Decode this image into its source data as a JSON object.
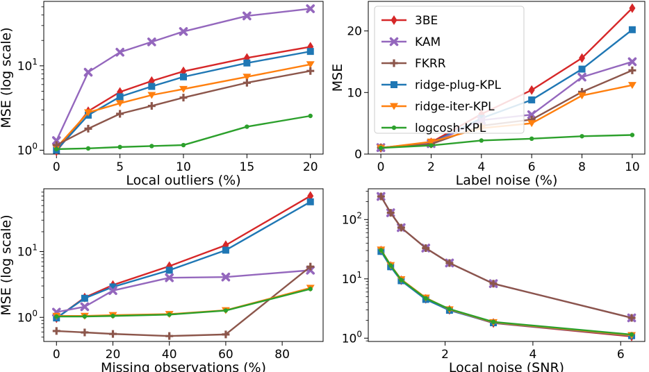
{
  "figure": {
    "legend": {
      "placement": "upper-left of top-right panel",
      "entries": [
        "3BE",
        "KAM",
        "FKRR",
        "ridge-plug-KPL",
        "ridge-iter-KPL",
        "logcosh-KPL"
      ]
    },
    "series_styles": {
      "3BE": {
        "color": "#d62728",
        "marker": "diamond"
      },
      "KAM": {
        "color": "#9467bd",
        "marker": "x"
      },
      "FKRR": {
        "color": "#8c564b",
        "marker": "plus"
      },
      "ridge-plug-KPL": {
        "color": "#1f77b4",
        "marker": "square"
      },
      "ridge-iter-KPL": {
        "color": "#ff7f0e",
        "marker": "triangle-down"
      },
      "logcosh-KPL": {
        "color": "#2ca02c",
        "marker": "dot"
      }
    }
  },
  "chart_data": [
    {
      "type": "line",
      "id": "local-outliers",
      "title": "",
      "xlabel": "Local outliers (%)",
      "ylabel": "MSE (log scale)",
      "yscale": "log",
      "xlim": [
        -1,
        21
      ],
      "ylim": [
        0.9,
        58
      ],
      "xticks": [
        0,
        5,
        10,
        15,
        20
      ],
      "yticks": [
        {
          "value": 1,
          "base": "10",
          "exp": "0"
        },
        {
          "value": 10,
          "base": "10",
          "exp": "1"
        }
      ],
      "x": [
        0,
        2.5,
        5,
        7.5,
        10,
        15,
        20
      ],
      "series": [
        {
          "name": "KAM",
          "values": [
            1.3,
            8.4,
            14.5,
            19.2,
            25.5,
            39.0,
            47.5
          ]
        },
        {
          "name": "3BE",
          "values": [
            0.97,
            2.9,
            4.9,
            6.6,
            8.6,
            12.4,
            16.8
          ]
        },
        {
          "name": "ridge-plug-KPL",
          "values": [
            1.0,
            2.6,
            4.3,
            5.7,
            7.4,
            10.8,
            14.8
          ]
        },
        {
          "name": "ridge-iter-KPL",
          "values": [
            1.07,
            2.8,
            3.6,
            4.5,
            5.3,
            7.4,
            10.4
          ]
        },
        {
          "name": "FKRR",
          "values": [
            1.15,
            1.8,
            2.7,
            3.35,
            4.2,
            6.3,
            8.7
          ]
        },
        {
          "name": "logcosh-KPL",
          "values": [
            1.03,
            1.05,
            1.09,
            1.12,
            1.15,
            1.9,
            2.55
          ]
        }
      ]
    },
    {
      "type": "line",
      "id": "label-noise",
      "title": "",
      "xlabel": "Label noise (%)",
      "ylabel": "MSE",
      "yscale": "linear",
      "xlim": [
        -0.5,
        10.5
      ],
      "ylim": [
        0,
        24.8
      ],
      "xticks": [
        0,
        2,
        4,
        6,
        8,
        10
      ],
      "yticks": [
        0,
        10,
        20
      ],
      "x": [
        0,
        2,
        4,
        6,
        8,
        10
      ],
      "series": [
        {
          "name": "3BE",
          "values": [
            1.0,
            1.9,
            6.5,
            10.4,
            15.6,
            23.7
          ]
        },
        {
          "name": "ridge-plug-KPL",
          "values": [
            1.0,
            1.8,
            5.8,
            8.8,
            13.8,
            20.2
          ]
        },
        {
          "name": "KAM",
          "values": [
            1.05,
            1.7,
            5.5,
            6.4,
            12.5,
            15.0
          ]
        },
        {
          "name": "FKRR",
          "values": [
            1.05,
            1.6,
            4.6,
            5.6,
            10.1,
            13.6
          ]
        },
        {
          "name": "ridge-iter-KPL",
          "values": [
            1.0,
            2.0,
            4.2,
            5.0,
            9.5,
            11.2
          ]
        },
        {
          "name": "logcosh-KPL",
          "values": [
            1.0,
            1.4,
            2.2,
            2.5,
            2.9,
            3.1
          ]
        }
      ]
    },
    {
      "type": "line",
      "id": "missing-observations",
      "title": "",
      "xlabel": "Missing observations (%)",
      "ylabel": "MSE (log scale)",
      "yscale": "log",
      "xlim": [
        -4.5,
        94.5
      ],
      "ylim": [
        0.43,
        90
      ],
      "xticks": [
        0,
        20,
        40,
        60,
        80
      ],
      "yticks": [
        {
          "value": 1,
          "base": "10",
          "exp": "0"
        },
        {
          "value": 10,
          "base": "10",
          "exp": "1"
        }
      ],
      "x": [
        0,
        10,
        20,
        40,
        60,
        90
      ],
      "series": [
        {
          "name": "3BE",
          "values": [
            0.97,
            2.0,
            3.1,
            6.0,
            12.5,
            70.0
          ]
        },
        {
          "name": "ridge-plug-KPL",
          "values": [
            0.98,
            1.95,
            2.9,
            5.2,
            10.5,
            57.0
          ]
        },
        {
          "name": "KAM",
          "values": [
            1.2,
            1.45,
            2.55,
            4.0,
            4.1,
            5.2
          ]
        },
        {
          "name": "FKRR",
          "values": [
            0.62,
            0.59,
            0.56,
            0.52,
            0.55,
            5.9
          ]
        },
        {
          "name": "ridge-iter-KPL",
          "values": [
            1.05,
            1.05,
            1.08,
            1.12,
            1.28,
            2.8
          ]
        },
        {
          "name": "logcosh-KPL",
          "values": [
            1.03,
            1.03,
            1.05,
            1.1,
            1.27,
            2.7
          ]
        }
      ]
    },
    {
      "type": "line",
      "id": "local-noise",
      "title": "",
      "xlabel": "Local noise (SNR)",
      "ylabel": "",
      "yscale": "log",
      "xlim": [
        0.25,
        6.55
      ],
      "ylim": [
        0.88,
        330
      ],
      "xticks": [
        2,
        4,
        6
      ],
      "yticks": [
        {
          "value": 1,
          "base": "10",
          "exp": "0"
        },
        {
          "value": 10,
          "base": "10",
          "exp": "1"
        },
        {
          "value": 100,
          "base": "10",
          "exp": "2"
        }
      ],
      "x": [
        0.54,
        0.76,
        1.0,
        1.56,
        2.1,
        3.1,
        6.25
      ],
      "series": [
        {
          "name": "KAM",
          "values": [
            245,
            130,
            73,
            33,
            18.5,
            8.3,
            2.2
          ]
        },
        {
          "name": "FKRR",
          "values": [
            245,
            130,
            73,
            33,
            18.5,
            8.3,
            2.2
          ]
        },
        {
          "name": "3BE",
          "values": [
            30,
            16.5,
            9.5,
            4.6,
            3.0,
            1.8,
            1.07
          ]
        },
        {
          "name": "ridge-plug-KPL",
          "values": [
            29,
            16,
            9.3,
            4.5,
            2.95,
            1.82,
            1.1
          ]
        },
        {
          "name": "ridge-iter-KPL",
          "values": [
            31,
            17,
            9.8,
            4.8,
            3.05,
            1.85,
            1.12
          ]
        },
        {
          "name": "logcosh-KPL",
          "values": [
            30.5,
            16.8,
            9.6,
            4.7,
            3.1,
            1.88,
            1.15
          ]
        }
      ]
    }
  ]
}
